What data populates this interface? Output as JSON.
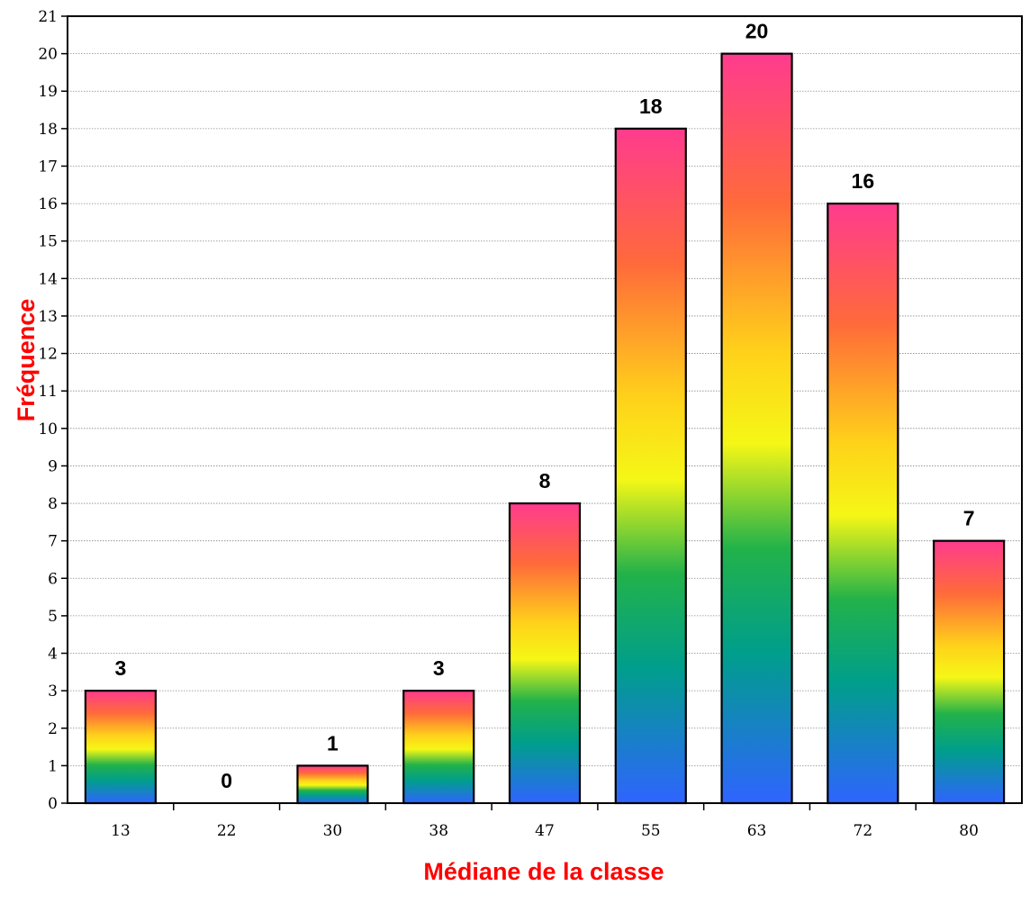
{
  "chart_data": {
    "type": "bar",
    "categories": [
      "13",
      "22",
      "30",
      "38",
      "47",
      "55",
      "63",
      "72",
      "80"
    ],
    "values": [
      3,
      0,
      1,
      3,
      8,
      18,
      20,
      16,
      7
    ],
    "data_labels": [
      "3",
      "0",
      "1",
      "3",
      "8",
      "18",
      "20",
      "16",
      "7"
    ],
    "title": "",
    "xlabel": "Médiane de la classe",
    "ylabel": "Fréquence",
    "ylim": [
      0,
      21
    ],
    "y_ticks": [
      "0",
      "1",
      "2",
      "3",
      "4",
      "5",
      "6",
      "7",
      "8",
      "9",
      "10",
      "11",
      "12",
      "13",
      "14",
      "15",
      "16",
      "17",
      "18",
      "19",
      "20",
      "21"
    ],
    "grid": "horizontal",
    "bar_fill": "rainbow-gradient",
    "colors": {
      "gradient_stops": [
        "#ff3b8e",
        "#ff6a3a",
        "#ffd21a",
        "#f5f716",
        "#22b24a",
        "#009e8c",
        "#2f64ff"
      ],
      "axis_title": "#ff0000",
      "bar_border": "#000000",
      "grid": "#808080"
    }
  }
}
